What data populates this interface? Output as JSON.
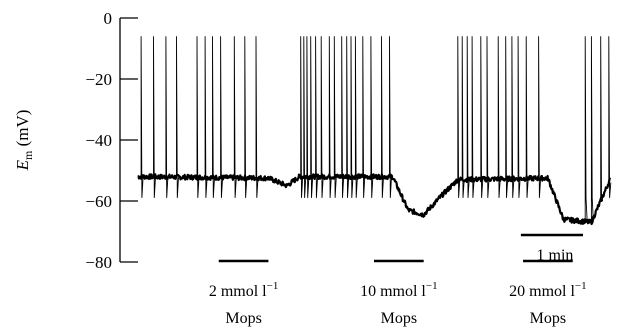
{
  "chart_data": {
    "type": "line",
    "ylabel_symbol": "E",
    "ylabel_subscript": "m",
    "ylabel_unit": "(mV)",
    "ylim": [
      -80,
      0
    ],
    "yticks": [
      0,
      -20,
      -40,
      -60,
      -80
    ],
    "ytick_labels": [
      "0",
      "−20",
      "−40",
      "−60",
      "−80"
    ],
    "x_unit": "min",
    "xlim": [
      0,
      7.6
    ],
    "trace_color": "#000000",
    "series": [
      {
        "x": [
          0,
          2.1,
          2.4,
          2.6,
          4.1,
          4.35,
          4.6,
          4.9,
          5.15,
          6.6,
          6.85,
          7.3,
          7.6
        ],
        "values": [
          -52,
          -52.5,
          -55,
          -52,
          -52,
          -63,
          -64.5,
          -58,
          -53,
          -52.5,
          -66,
          -67,
          -53
        ]
      }
    ],
    "spikes": {
      "peak": -6,
      "after_trough": -59,
      "times": [
        0.05,
        0.25,
        0.45,
        0.62,
        0.95,
        1.08,
        1.2,
        1.33,
        1.55,
        1.72,
        1.9,
        2.62,
        2.67,
        2.72,
        2.78,
        2.86,
        2.95,
        3.08,
        3.16,
        3.28,
        3.36,
        3.43,
        3.5,
        3.62,
        3.75,
        3.92,
        4.05,
        5.15,
        5.22,
        5.3,
        5.38,
        5.52,
        5.62,
        5.8,
        5.92,
        6.02,
        6.12,
        6.25,
        6.45,
        7.2,
        7.3,
        7.45,
        7.58
      ]
    },
    "annotations": [
      {
        "concentration": "2 mmol l",
        "superscript": "−1",
        "agent": "Mops",
        "start": 1.3,
        "end": 2.1
      },
      {
        "concentration": "10 mmol l",
        "superscript": "−1",
        "agent": "Mops",
        "start": 3.8,
        "end": 4.6
      },
      {
        "concentration": "20 mmol l",
        "superscript": "−1",
        "agent": "Mops",
        "start": 6.2,
        "end": 7.0
      }
    ],
    "scale_bar": {
      "label": "1 min",
      "length": 1
    }
  }
}
